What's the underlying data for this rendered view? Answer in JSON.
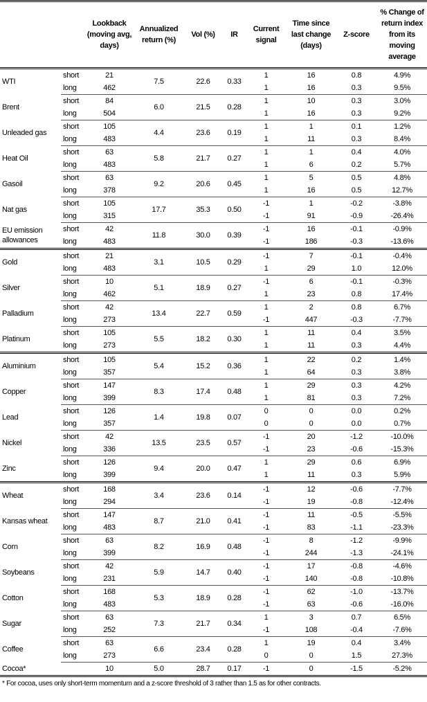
{
  "headers": [
    "",
    "",
    "Lookback (moving avg, days)",
    "Annualized return (%)",
    "Vol (%)",
    "IR",
    "Current signal",
    "Time since last change (days)",
    "Z-score",
    "% Change of return index from its moving average"
  ],
  "groups": [
    {
      "rows": [
        {
          "name": "WTI",
          "ann": "7.5",
          "vol": "22.6",
          "ir": "0.33",
          "sub": [
            {
              "term": "short",
              "lookback": "21",
              "signal": "1",
              "time": "16",
              "z": "0.8",
              "pct": "4.9%"
            },
            {
              "term": "long",
              "lookback": "462",
              "signal": "1",
              "time": "16",
              "z": "0.3",
              "pct": "9.5%"
            }
          ]
        },
        {
          "name": "Brent",
          "ann": "6.0",
          "vol": "21.5",
          "ir": "0.28",
          "sub": [
            {
              "term": "short",
              "lookback": "84",
              "signal": "1",
              "time": "10",
              "z": "0.3",
              "pct": "3.0%"
            },
            {
              "term": "long",
              "lookback": "504",
              "signal": "1",
              "time": "16",
              "z": "0.3",
              "pct": "9.2%"
            }
          ]
        },
        {
          "name": "Unleaded gas",
          "ann": "4.4",
          "vol": "23.6",
          "ir": "0.19",
          "sub": [
            {
              "term": "short",
              "lookback": "105",
              "signal": "1",
              "time": "1",
              "z": "0.1",
              "pct": "1.2%"
            },
            {
              "term": "long",
              "lookback": "483",
              "signal": "1",
              "time": "11",
              "z": "0.3",
              "pct": "8.4%"
            }
          ]
        },
        {
          "name": "Heat Oil",
          "ann": "5.8",
          "vol": "21.7",
          "ir": "0.27",
          "sub": [
            {
              "term": "short",
              "lookback": "63",
              "signal": "1",
              "time": "1",
              "z": "0.4",
              "pct": "4.0%"
            },
            {
              "term": "long",
              "lookback": "483",
              "signal": "1",
              "time": "6",
              "z": "0.2",
              "pct": "5.7%"
            }
          ]
        },
        {
          "name": "Gasoil",
          "ann": "9.2",
          "vol": "20.6",
          "ir": "0.45",
          "sub": [
            {
              "term": "short",
              "lookback": "63",
              "signal": "1",
              "time": "5",
              "z": "0.5",
              "pct": "4.8%"
            },
            {
              "term": "long",
              "lookback": "378",
              "signal": "1",
              "time": "16",
              "z": "0.5",
              "pct": "12.7%"
            }
          ]
        },
        {
          "name": "Nat gas",
          "ann": "17.7",
          "vol": "35.3",
          "ir": "0.50",
          "sub": [
            {
              "term": "short",
              "lookback": "105",
              "signal": "-1",
              "time": "1",
              "z": "-0.2",
              "pct": "-3.8%"
            },
            {
              "term": "long",
              "lookback": "315",
              "signal": "-1",
              "time": "91",
              "z": "-0.9",
              "pct": "-26.4%"
            }
          ]
        },
        {
          "name": "EU emission allowances",
          "ann": "11.8",
          "vol": "30.0",
          "ir": "0.39",
          "sub": [
            {
              "term": "short",
              "lookback": "42",
              "signal": "-1",
              "time": "16",
              "z": "-0.1",
              "pct": "-0.9%"
            },
            {
              "term": "long",
              "lookback": "483",
              "signal": "-1",
              "time": "186",
              "z": "-0.3",
              "pct": "-13.6%"
            }
          ]
        }
      ]
    },
    {
      "rows": [
        {
          "name": "Gold",
          "ann": "3.1",
          "vol": "10.5",
          "ir": "0.29",
          "sub": [
            {
              "term": "short",
              "lookback": "21",
              "signal": "-1",
              "time": "7",
              "z": "-0.1",
              "pct": "-0.4%"
            },
            {
              "term": "long",
              "lookback": "483",
              "signal": "1",
              "time": "29",
              "z": "1.0",
              "pct": "12.0%"
            }
          ]
        },
        {
          "name": "Silver",
          "ann": "5.1",
          "vol": "18.9",
          "ir": "0.27",
          "sub": [
            {
              "term": "short",
              "lookback": "10",
              "signal": "-1",
              "time": "6",
              "z": "-0.1",
              "pct": "-0.3%"
            },
            {
              "term": "long",
              "lookback": "462",
              "signal": "1",
              "time": "23",
              "z": "0.8",
              "pct": "17.4%"
            }
          ]
        },
        {
          "name": "Palladium",
          "ann": "13.4",
          "vol": "22.7",
          "ir": "0.59",
          "sub": [
            {
              "term": "short",
              "lookback": "42",
              "signal": "1",
              "time": "2",
              "z": "0.8",
              "pct": "6.7%"
            },
            {
              "term": "long",
              "lookback": "273",
              "signal": "-1",
              "time": "447",
              "z": "-0.3",
              "pct": "-7.7%"
            }
          ]
        },
        {
          "name": "Platinum",
          "ann": "5.5",
          "vol": "18.2",
          "ir": "0.30",
          "sub": [
            {
              "term": "short",
              "lookback": "105",
              "signal": "1",
              "time": "11",
              "z": "0.4",
              "pct": "3.5%"
            },
            {
              "term": "long",
              "lookback": "273",
              "signal": "1",
              "time": "11",
              "z": "0.3",
              "pct": "4.4%"
            }
          ]
        }
      ]
    },
    {
      "rows": [
        {
          "name": "Aluminium",
          "ann": "5.4",
          "vol": "15.2",
          "ir": "0.36",
          "sub": [
            {
              "term": "short",
              "lookback": "105",
              "signal": "1",
              "time": "22",
              "z": "0.2",
              "pct": "1.4%"
            },
            {
              "term": "long",
              "lookback": "357",
              "signal": "1",
              "time": "64",
              "z": "0.3",
              "pct": "3.8%"
            }
          ]
        },
        {
          "name": "Copper",
          "ann": "8.3",
          "vol": "17.4",
          "ir": "0.48",
          "sub": [
            {
              "term": "short",
              "lookback": "147",
              "signal": "1",
              "time": "29",
              "z": "0.3",
              "pct": "4.2%"
            },
            {
              "term": "long",
              "lookback": "399",
              "signal": "1",
              "time": "81",
              "z": "0.3",
              "pct": "7.2%"
            }
          ]
        },
        {
          "name": "Lead",
          "ann": "1.4",
          "vol": "19.8",
          "ir": "0.07",
          "sub": [
            {
              "term": "short",
              "lookback": "126",
              "signal": "0",
              "time": "0",
              "z": "0.0",
              "pct": "0.2%"
            },
            {
              "term": "long",
              "lookback": "357",
              "signal": "0",
              "time": "0",
              "z": "0.0",
              "pct": "0.7%"
            }
          ]
        },
        {
          "name": "Nickel",
          "ann": "13.5",
          "vol": "23.5",
          "ir": "0.57",
          "sub": [
            {
              "term": "short",
              "lookback": "42",
              "signal": "-1",
              "time": "20",
              "z": "-1.2",
              "pct": "-10.0%"
            },
            {
              "term": "long",
              "lookback": "336",
              "signal": "-1",
              "time": "23",
              "z": "-0.6",
              "pct": "-15.3%"
            }
          ]
        },
        {
          "name": "Zinc",
          "ann": "9.4",
          "vol": "20.0",
          "ir": "0.47",
          "sub": [
            {
              "term": "short",
              "lookback": "126",
              "signal": "1",
              "time": "29",
              "z": "0.6",
              "pct": "6.9%"
            },
            {
              "term": "long",
              "lookback": "399",
              "signal": "1",
              "time": "11",
              "z": "0.3",
              "pct": "5.9%"
            }
          ]
        }
      ]
    },
    {
      "rows": [
        {
          "name": "Wheat",
          "ann": "3.4",
          "vol": "23.6",
          "ir": "0.14",
          "sub": [
            {
              "term": "short",
              "lookback": "168",
              "signal": "-1",
              "time": "12",
              "z": "-0.6",
              "pct": "-7.7%"
            },
            {
              "term": "long",
              "lookback": "294",
              "signal": "-1",
              "time": "19",
              "z": "-0.8",
              "pct": "-12.4%"
            }
          ]
        },
        {
          "name": "Kansas wheat",
          "ann": "8.7",
          "vol": "21.0",
          "ir": "0.41",
          "sub": [
            {
              "term": "short",
              "lookback": "147",
              "signal": "-1",
              "time": "11",
              "z": "-0.5",
              "pct": "-5.5%"
            },
            {
              "term": "long",
              "lookback": "483",
              "signal": "-1",
              "time": "83",
              "z": "-1.1",
              "pct": "-23.3%"
            }
          ]
        },
        {
          "name": "Corn",
          "ann": "8.2",
          "vol": "16.9",
          "ir": "0.48",
          "sub": [
            {
              "term": "short",
              "lookback": "63",
              "signal": "-1",
              "time": "8",
              "z": "-1.2",
              "pct": "-9.9%"
            },
            {
              "term": "long",
              "lookback": "399",
              "signal": "-1",
              "time": "244",
              "z": "-1.3",
              "pct": "-24.1%"
            }
          ]
        },
        {
          "name": "Soybeans",
          "ann": "5.9",
          "vol": "14.7",
          "ir": "0.40",
          "sub": [
            {
              "term": "short",
              "lookback": "42",
              "signal": "-1",
              "time": "17",
              "z": "-0.8",
              "pct": "-4.6%"
            },
            {
              "term": "long",
              "lookback": "231",
              "signal": "-1",
              "time": "140",
              "z": "-0.8",
              "pct": "-10.8%"
            }
          ]
        },
        {
          "name": "Cotton",
          "ann": "5.3",
          "vol": "18.9",
          "ir": "0.28",
          "sub": [
            {
              "term": "short",
              "lookback": "168",
              "signal": "-1",
              "time": "62",
              "z": "-1.0",
              "pct": "-13.7%"
            },
            {
              "term": "long",
              "lookback": "483",
              "signal": "-1",
              "time": "63",
              "z": "-0.6",
              "pct": "-16.0%"
            }
          ]
        },
        {
          "name": "Sugar",
          "ann": "7.3",
          "vol": "21.7",
          "ir": "0.34",
          "sub": [
            {
              "term": "short",
              "lookback": "63",
              "signal": "1",
              "time": "3",
              "z": "0.7",
              "pct": "6.5%"
            },
            {
              "term": "long",
              "lookback": "252",
              "signal": "-1",
              "time": "108",
              "z": "-0.4",
              "pct": "-7.6%"
            }
          ]
        },
        {
          "name": "Coffee",
          "ann": "6.6",
          "vol": "23.4",
          "ir": "0.28",
          "sub": [
            {
              "term": "short",
              "lookback": "63",
              "signal": "1",
              "time": "19",
              "z": "0.4",
              "pct": "3.4%"
            },
            {
              "term": "long",
              "lookback": "273",
              "signal": "0",
              "time": "0",
              "z": "1.5",
              "pct": "27.3%"
            }
          ]
        },
        {
          "name": "Cocoa*",
          "ann": "5.0",
          "vol": "28.7",
          "ir": "0.17",
          "sub": [
            {
              "term": "",
              "lookback": "10",
              "signal": "-1",
              "time": "0",
              "z": "-1.5",
              "pct": "-5.2%"
            }
          ]
        }
      ]
    }
  ],
  "footnote": "* For cocoa, uses only short-term momentum and a z-score threshold of 3 rather than 1.5 as for other contracts."
}
